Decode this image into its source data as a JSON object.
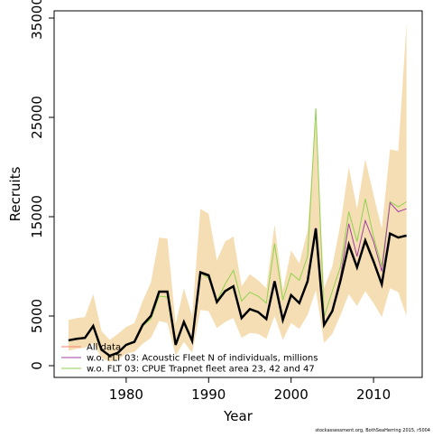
{
  "chart_data": {
    "type": "line",
    "x_label": "Year",
    "y_label": "Recruits",
    "footnote": "stockassessment.org, BothSeaHerring 2015, r5004",
    "x": [
      1973,
      1974,
      1975,
      1976,
      1977,
      1978,
      1979,
      1980,
      1981,
      1982,
      1983,
      1984,
      1985,
      1986,
      1987,
      1988,
      1989,
      1990,
      1991,
      1992,
      1993,
      1994,
      1995,
      1996,
      1997,
      1998,
      1999,
      2000,
      2001,
      2002,
      2003,
      2004,
      2005,
      2006,
      2007,
      2008,
      2009,
      2010,
      2011,
      2012,
      2013,
      2014
    ],
    "xlim": [
      1971.26,
      2015.9
    ],
    "xticks": [
      1980,
      1990,
      2000,
      2010
    ],
    "ylim": [
      -1182,
      35727
    ],
    "yticks": [
      0,
      5000,
      15000,
      25000,
      35000
    ],
    "band": {
      "color": "#f5deb3",
      "upper": [
        4600,
        4800,
        4900,
        7200,
        3500,
        2600,
        3200,
        3900,
        4300,
        6500,
        8400,
        12900,
        12800,
        4200,
        7800,
        5000,
        15800,
        15300,
        10600,
        12500,
        13000,
        8000,
        9200,
        8600,
        7800,
        14200,
        7600,
        11600,
        10300,
        13600,
        24800,
        7800,
        10000,
        14300,
        20000,
        15800,
        20800,
        17200,
        13800,
        21800,
        21600,
        34400
      ],
      "lower": [
        1500,
        1700,
        1800,
        2300,
        800,
        400,
        600,
        1200,
        1400,
        2200,
        2800,
        4500,
        4300,
        1000,
        2400,
        1300,
        5600,
        5500,
        3800,
        4400,
        4800,
        2800,
        3300,
        3200,
        2700,
        5000,
        2600,
        4300,
        3700,
        5100,
        7600,
        2300,
        3200,
        5100,
        7200,
        6000,
        7500,
        6300,
        4900,
        7800,
        7400,
        5000
      ]
    },
    "series": [
      {
        "name": "w.o. FLT 03: CPUE Trapnet fleet area 23, 42 and 47",
        "color": "#8fd14f",
        "width": 1,
        "values": [
          2600,
          2750,
          2850,
          4000,
          1650,
          1050,
          1350,
          2150,
          2450,
          4000,
          4700,
          7000,
          6900,
          2100,
          4300,
          2600,
          9300,
          8800,
          6500,
          8200,
          9600,
          6500,
          7400,
          7000,
          6300,
          12300,
          6600,
          9300,
          8600,
          11000,
          25900,
          4900,
          7500,
          10000,
          15500,
          12500,
          16800,
          13000,
          10000,
          16500,
          16000,
          16500
        ]
      },
      {
        "name": "w.o. FLT 03: Acoustic Fleet   N of individuals, millions",
        "color": "#a040a0",
        "width": 1,
        "values": [
          2550,
          2700,
          2800,
          3900,
          1600,
          1000,
          1300,
          2100,
          2400,
          4100,
          5000,
          7400,
          7400,
          2100,
          4400,
          2500,
          9300,
          9000,
          6400,
          7500,
          8000,
          4800,
          5700,
          5400,
          4700,
          8500,
          4600,
          7100,
          6300,
          8500,
          13900,
          4200,
          5600,
          9000,
          14300,
          11000,
          14600,
          12500,
          9500,
          16400,
          15500,
          15800
        ]
      },
      {
        "name": "All data",
        "color": "#000000",
        "legend_color": "#fa8072",
        "width": 2.5,
        "values": [
          2550,
          2700,
          2800,
          4000,
          1600,
          1000,
          1300,
          2100,
          2400,
          4100,
          5000,
          7450,
          7450,
          2100,
          4400,
          2500,
          9400,
          9100,
          6400,
          7500,
          8000,
          4800,
          5700,
          5400,
          4700,
          8500,
          4600,
          7100,
          6300,
          8500,
          13800,
          4100,
          5500,
          8600,
          12200,
          9900,
          12600,
          10500,
          8200,
          13300,
          12900,
          13100
        ]
      }
    ]
  }
}
